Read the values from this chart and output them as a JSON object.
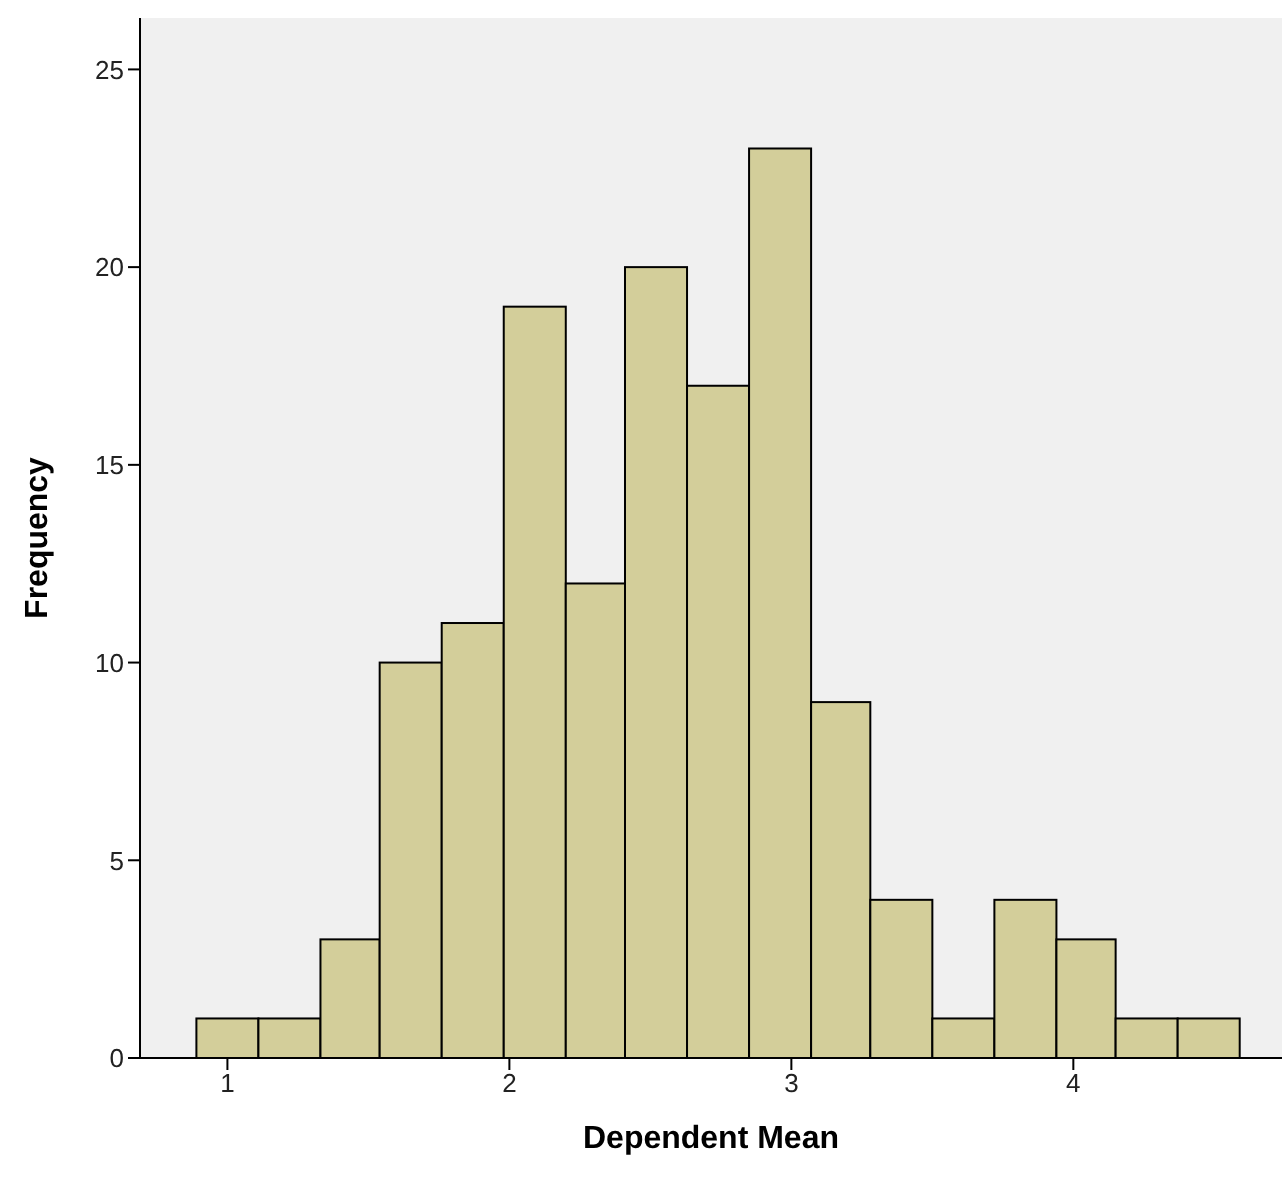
{
  "chart_data": {
    "type": "histogram",
    "xlabel": "Dependent Mean",
    "ylabel": "Frequency",
    "bins": [
      0.89,
      1.11,
      1.33,
      1.54,
      1.76,
      1.98,
      2.2,
      2.41,
      2.63,
      2.85,
      3.07,
      3.28,
      3.5,
      3.72,
      3.94,
      4.15,
      4.37,
      4.59
    ],
    "values": [
      1,
      1,
      3,
      10,
      11,
      19,
      12,
      20,
      17,
      23,
      9,
      4,
      1,
      4,
      3,
      1,
      1
    ],
    "color": "#d3ce9a",
    "xlim": [
      0.69,
      4.74
    ],
    "xticks": [
      1,
      2,
      3,
      4
    ],
    "ylim": [
      0,
      26.3
    ],
    "yticks": [
      0,
      5,
      10,
      15,
      20,
      25
    ],
    "grid": false
  }
}
